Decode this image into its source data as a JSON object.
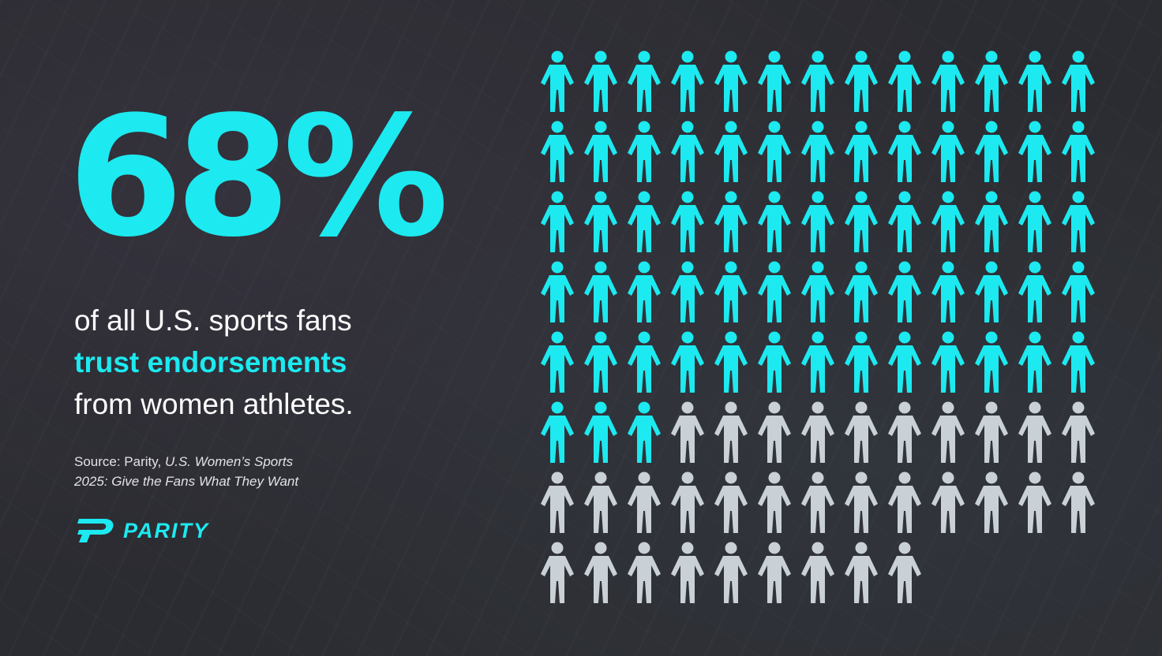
{
  "stat": {
    "value": "68%",
    "line1": "of all U.S. sports fans",
    "line2": "trust endorsements",
    "line3": "from women athletes."
  },
  "source": {
    "prefix": "Source: Parity, ",
    "title_line1": "U.S. Women’s Sports",
    "title_line2": "2025: Give the Fans What They Want"
  },
  "brand": {
    "name": "PARITY",
    "icon": "parity-logo-icon"
  },
  "pictogram": {
    "total": 100,
    "highlighted": 68,
    "icon": "person-icon",
    "highlight_color": "#1ceaf0",
    "base_color": "#c9d1d6"
  },
  "colors": {
    "accent": "#1ceaf0",
    "background": "#2b2c31",
    "text": "#ffffff"
  }
}
